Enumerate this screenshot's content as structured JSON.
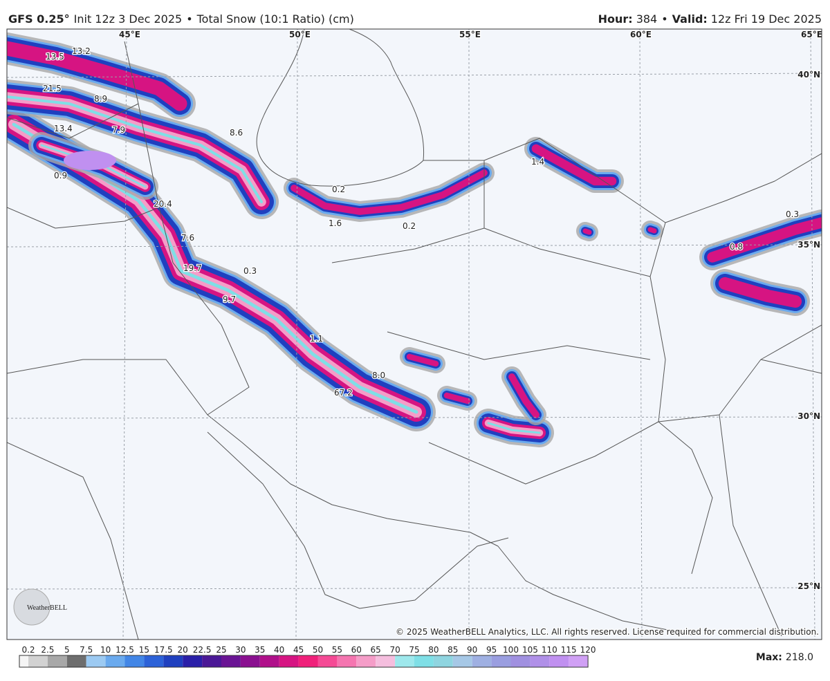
{
  "header": {
    "model": "GFS 0.25°",
    "init": "Init 12z 3 Dec 2025",
    "separator": "•",
    "product": "Total Snow (10:1 Ratio) (cm)",
    "hour_label": "Hour:",
    "hour": "384",
    "valid_label": "Valid:",
    "valid": "12z Fri 19 Dec 2025"
  },
  "map": {
    "lon_labels": [
      "45°E",
      "50°E",
      "55°E",
      "60°E",
      "65°E"
    ],
    "lat_labels": [
      "40°N",
      "35°N",
      "30°N",
      "25°N"
    ],
    "amount_labels": [
      "13.5",
      "13.2",
      "21.5",
      "8.9",
      "13.4",
      "7.9",
      "8.6",
      "0.9",
      "20.4",
      "0.2",
      "1.6",
      "0.2",
      "7.6",
      "19.7",
      "0.3",
      "9.7",
      "1.1",
      "8.0",
      "67.2",
      "1.4",
      "0.3",
      "0.8"
    ],
    "copyright": "© 2025 WeatherBELL Analytics, LLC. All rights reserved. License required for commercial distribution.",
    "logo": "WeatherBELL"
  },
  "legend": {
    "levels": [
      0.2,
      2.5,
      5,
      7.5,
      10,
      12.5,
      15,
      17.5,
      20,
      22.5,
      25,
      30,
      35,
      40,
      45,
      50,
      55,
      60,
      65,
      70,
      75,
      80,
      85,
      90,
      95,
      100,
      105,
      110,
      115,
      120
    ],
    "colors": [
      "#f5f5f5",
      "#d2d2d2",
      "#a8a8a8",
      "#6e6e6e",
      "#9ccaf2",
      "#6aaaee",
      "#4286e6",
      "#2c62d8",
      "#1f40bf",
      "#2a1fa8",
      "#4b1896",
      "#6a1494",
      "#8a1090",
      "#b0108a",
      "#d61482",
      "#f0207a",
      "#f54a95",
      "#f575b0",
      "#f59dc8",
      "#f5bede",
      "#9ee8ec",
      "#7fdfe6",
      "#8fd5e0",
      "#a6c8e6",
      "#9fb0e2",
      "#9a9ee0",
      "#a090e0",
      "#b090e8",
      "#c090f0",
      "#d0a0f5"
    ],
    "max_label": "Max:",
    "max": "218.0"
  }
}
